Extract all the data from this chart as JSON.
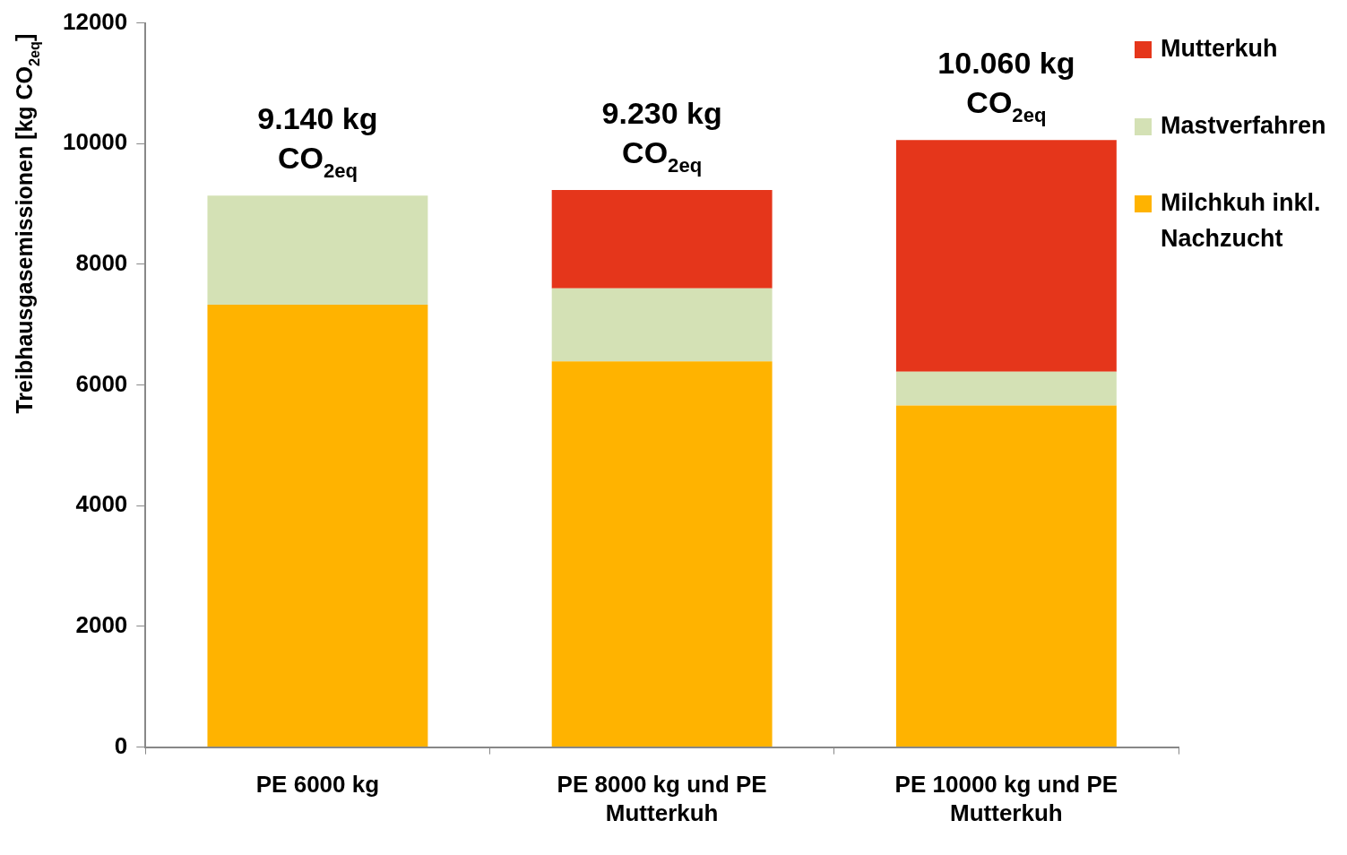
{
  "chart_data": {
    "type": "bar",
    "stacked": true,
    "ylabel": "Treibhausgasemissionen [kg CO$_{2eq}$]",
    "categories": [
      "PE 6000 kg",
      "PE 8000 kg und PE Mutterkuh",
      "PE 10000 kg und PE Mutterkuh"
    ],
    "series": [
      {
        "name": "Milchkuh inkl. Nachzucht",
        "color": "#ffb300",
        "values": [
          7330,
          6390,
          5660
        ]
      },
      {
        "name": "Mastverfahren",
        "color": "#d4e1b5",
        "values": [
          1810,
          1210,
          560
        ]
      },
      {
        "name": "Mutterkuh",
        "color": "#e5361b",
        "values": [
          null,
          1630,
          3840
        ]
      }
    ],
    "totals": [
      "9.140 kg CO$_{2eq}$",
      "9.230 kg CO$_{2eq}$",
      "10.060 kg CO$_{2eq}$"
    ],
    "ylim": [
      0,
      12000
    ],
    "yticks": [
      0,
      2000,
      4000,
      6000,
      8000,
      10000,
      12000
    ],
    "grid": false,
    "legend": "right"
  }
}
